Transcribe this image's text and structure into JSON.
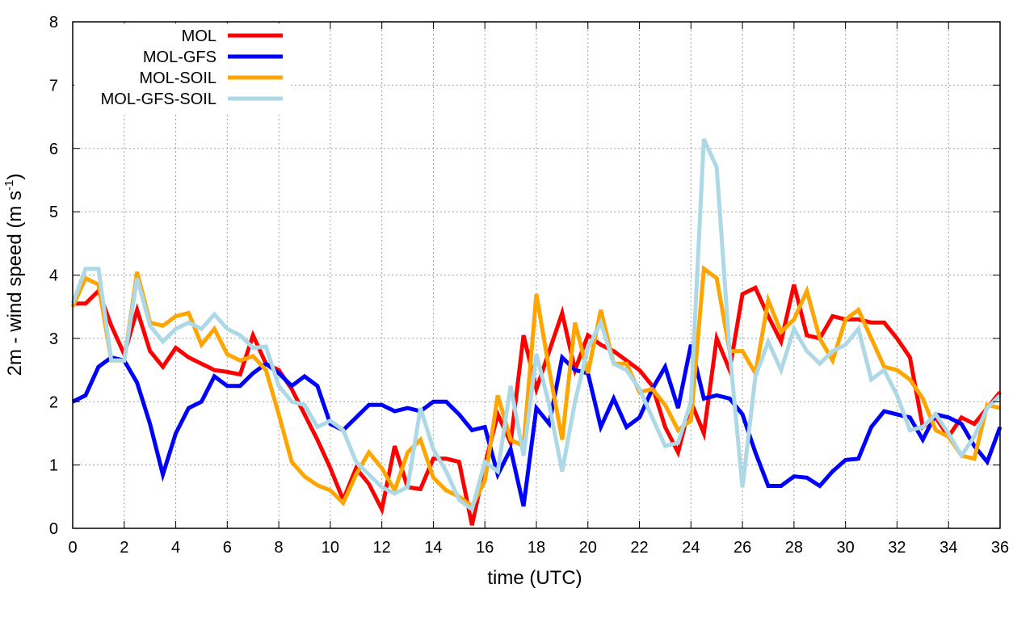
{
  "chart_data": {
    "type": "line",
    "title": "",
    "xlabel": "time (UTC)",
    "ylabel": "2m - wind speed  (m s",
    "ylabel_sup": "-1",
    "ylabel_end": ")",
    "xlim": [
      0,
      36
    ],
    "ylim": [
      0,
      8
    ],
    "xticks": [
      0,
      2,
      4,
      6,
      8,
      10,
      12,
      14,
      16,
      18,
      20,
      22,
      24,
      26,
      28,
      30,
      32,
      34,
      36
    ],
    "yticks": [
      0,
      1,
      2,
      3,
      4,
      5,
      6,
      7,
      8
    ],
    "grid": true,
    "legend_position": "top-left",
    "x_step": 0.5,
    "series": [
      {
        "name": "MOL",
        "color": "#ff0000",
        "values": [
          3.55,
          3.55,
          3.75,
          3.2,
          2.75,
          3.45,
          2.8,
          2.55,
          2.85,
          2.7,
          2.6,
          2.5,
          2.47,
          2.43,
          3.05,
          2.6,
          2.5,
          2.2,
          1.8,
          1.4,
          0.95,
          0.45,
          0.95,
          0.7,
          0.3,
          1.3,
          0.65,
          0.62,
          1.1,
          1.1,
          1.05,
          0.05,
          1.0,
          1.8,
          1.35,
          3.05,
          2.2,
          2.8,
          3.4,
          2.5,
          3.05,
          2.9,
          2.8,
          2.65,
          2.5,
          2.25,
          1.6,
          1.2,
          2.0,
          1.5,
          3.0,
          2.5,
          3.7,
          3.8,
          3.35,
          2.95,
          3.85,
          3.05,
          3.0,
          3.35,
          3.3,
          3.3,
          3.25,
          3.25,
          3.0,
          2.7,
          1.6,
          1.75,
          1.45,
          1.75,
          1.65,
          1.9,
          2.15
        ]
      },
      {
        "name": "MOL-GFS",
        "color": "#0000ff",
        "values": [
          2.0,
          2.1,
          2.55,
          2.7,
          2.65,
          2.3,
          1.65,
          0.85,
          1.5,
          1.9,
          2.0,
          2.4,
          2.25,
          2.25,
          2.45,
          2.6,
          2.45,
          2.25,
          2.4,
          2.25,
          1.65,
          1.55,
          1.75,
          1.95,
          1.95,
          1.85,
          1.9,
          1.85,
          2.0,
          2.0,
          1.8,
          1.55,
          1.6,
          0.85,
          1.25,
          0.35,
          1.9,
          1.65,
          2.7,
          2.5,
          2.45,
          1.6,
          2.05,
          1.6,
          1.75,
          2.2,
          2.55,
          1.9,
          2.9,
          2.05,
          2.1,
          2.05,
          1.8,
          1.2,
          0.67,
          0.67,
          0.82,
          0.8,
          0.67,
          0.9,
          1.08,
          1.1,
          1.6,
          1.85,
          1.8,
          1.75,
          1.4,
          1.8,
          1.75,
          1.65,
          1.3,
          1.05,
          1.6
        ]
      },
      {
        "name": "MOL-SOIL",
        "color": "#ffa500",
        "values": [
          3.5,
          3.95,
          3.85,
          2.65,
          2.65,
          4.05,
          3.25,
          3.2,
          3.35,
          3.4,
          2.9,
          3.15,
          2.75,
          2.65,
          2.72,
          2.5,
          1.8,
          1.05,
          0.82,
          0.68,
          0.6,
          0.4,
          0.85,
          1.2,
          0.95,
          0.6,
          1.2,
          1.4,
          0.8,
          0.6,
          0.5,
          0.35,
          0.75,
          2.1,
          1.4,
          1.3,
          3.7,
          2.5,
          1.4,
          3.25,
          2.45,
          3.45,
          2.6,
          2.6,
          2.15,
          2.2,
          1.95,
          1.55,
          1.7,
          4.1,
          3.95,
          2.8,
          2.8,
          2.45,
          3.6,
          3.1,
          3.3,
          3.75,
          3.0,
          2.65,
          3.3,
          3.45,
          3.0,
          2.55,
          2.5,
          2.35,
          2.05,
          1.55,
          1.45,
          1.15,
          1.1,
          1.95,
          1.9
        ]
      },
      {
        "name": "MOL-GFS-SOIL",
        "color": "#add8e6",
        "values": [
          3.55,
          4.1,
          4.1,
          2.65,
          2.65,
          3.95,
          3.2,
          2.95,
          3.15,
          3.25,
          3.15,
          3.38,
          3.15,
          3.05,
          2.85,
          2.87,
          2.25,
          2.0,
          1.95,
          1.6,
          1.7,
          1.55,
          1.05,
          0.85,
          0.65,
          0.55,
          0.65,
          1.9,
          1.25,
          0.9,
          0.45,
          0.3,
          1.05,
          0.9,
          2.25,
          1.15,
          2.75,
          1.95,
          0.9,
          2.0,
          2.85,
          3.25,
          2.6,
          2.5,
          2.2,
          1.75,
          1.3,
          1.35,
          2.0,
          6.15,
          5.7,
          2.8,
          0.65,
          2.4,
          2.95,
          2.5,
          3.15,
          2.8,
          2.6,
          2.8,
          2.9,
          3.15,
          2.35,
          2.5,
          2.1,
          1.55,
          1.6,
          1.8,
          1.5,
          1.15,
          1.45,
          1.9,
          2.1
        ]
      }
    ]
  }
}
